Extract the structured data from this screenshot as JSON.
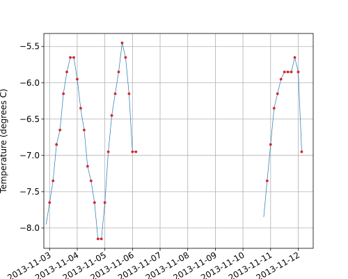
{
  "chart_data": {
    "type": "line",
    "title": "",
    "xlabel": "",
    "ylabel": "Temperature (degrees C)",
    "x_type": "date",
    "xlim": [
      "2013-11-02 19:00",
      "2013-11-12 13:00"
    ],
    "ylim": [
      -8.28,
      -5.32
    ],
    "grid": true,
    "x_ticks": [
      "2013-11-03",
      "2013-11-04",
      "2013-11-05",
      "2013-11-06",
      "2013-11-07",
      "2013-11-08",
      "2013-11-09",
      "2013-11-10",
      "2013-11-11",
      "2013-11-12"
    ],
    "y_ticks": [
      -8.0,
      -7.5,
      -7.0,
      -6.5,
      -6.0,
      -5.5
    ],
    "line_color": "#1f77b4",
    "marker_color": "#d62728",
    "line": {
      "x": [
        "2013-11-02 21:00",
        "2013-11-03 00:00",
        "2013-11-03 03:00",
        "2013-11-03 06:00",
        "2013-11-03 09:00",
        "2013-11-03 12:00",
        "2013-11-03 15:00",
        "2013-11-03 18:00",
        "2013-11-03 21:00",
        "2013-11-04 00:00",
        "2013-11-04 03:00",
        "2013-11-04 06:00",
        "2013-11-04 09:00",
        "2013-11-04 12:00",
        "2013-11-04 15:00",
        "2013-11-04 18:00",
        "2013-11-04 21:00",
        "2013-11-05 00:00",
        "2013-11-05 03:00",
        "2013-11-05 06:00",
        "2013-11-05 09:00",
        "2013-11-05 12:00",
        "2013-11-05 15:00",
        "2013-11-05 18:00",
        "2013-11-05 21:00",
        "2013-11-06 00:00",
        "2013-11-06 03:00",
        "2013-11-06 06:00",
        null,
        "2013-11-10 18:00",
        "2013-11-10 21:00",
        "2013-11-11 00:00",
        "2013-11-11 03:00",
        "2013-11-11 06:00",
        "2013-11-11 09:00",
        "2013-11-11 12:00",
        "2013-11-11 15:00",
        "2013-11-11 18:00",
        "2013-11-11 21:00",
        "2013-11-12 00:00",
        "2013-11-12 03:00"
      ],
      "y": [
        -7.95,
        -7.65,
        -7.35,
        -6.85,
        -6.65,
        -6.15,
        -5.85,
        -5.65,
        -5.65,
        -5.95,
        -6.35,
        -6.65,
        -7.15,
        -7.35,
        -7.65,
        -8.15,
        -8.15,
        -7.65,
        -6.95,
        -6.45,
        -6.15,
        -5.85,
        -5.45,
        -5.65,
        -6.15,
        -6.95,
        -6.95,
        null,
        null,
        -7.85,
        -7.35,
        -6.85,
        -6.35,
        -6.15,
        -5.95,
        -5.85,
        -5.85,
        -5.85,
        -5.65,
        -5.85,
        -6.95
      ]
    },
    "markers": {
      "x": [
        "2013-11-03 00:00",
        "2013-11-03 03:00",
        "2013-11-03 06:00",
        "2013-11-03 09:00",
        "2013-11-03 12:00",
        "2013-11-03 15:00",
        "2013-11-03 18:00",
        "2013-11-03 21:00",
        "2013-11-04 00:00",
        "2013-11-04 03:00",
        "2013-11-04 06:00",
        "2013-11-04 09:00",
        "2013-11-04 12:00",
        "2013-11-04 15:00",
        "2013-11-04 18:00",
        "2013-11-04 21:00",
        "2013-11-05 00:00",
        "2013-11-05 03:00",
        "2013-11-05 06:00",
        "2013-11-05 09:00",
        "2013-11-05 12:00",
        "2013-11-05 15:00",
        "2013-11-05 18:00",
        "2013-11-05 21:00",
        "2013-11-06 00:00",
        "2013-11-06 03:00",
        "2013-11-06 06:00",
        "2013-11-10 21:00",
        "2013-11-11 00:00",
        "2013-11-11 03:00",
        "2013-11-11 06:00",
        "2013-11-11 09:00",
        "2013-11-11 12:00",
        "2013-11-11 15:00",
        "2013-11-11 18:00",
        "2013-11-11 21:00",
        "2013-11-12 00:00",
        "2013-11-12 03:00"
      ],
      "y": [
        -7.65,
        -7.35,
        -6.85,
        -6.65,
        -6.15,
        -5.85,
        -5.65,
        -5.65,
        -5.95,
        -6.35,
        -6.65,
        -7.15,
        -7.35,
        -7.65,
        -8.15,
        -8.15,
        -7.65,
        -6.95,
        -6.45,
        -6.15,
        -5.85,
        -5.45,
        -5.65,
        -6.15,
        -6.95,
        -6.95,
        null,
        -7.35,
        -6.85,
        -6.35,
        -6.15,
        -5.95,
        -5.85,
        -5.85,
        -5.85,
        -5.65,
        -5.85,
        -6.95
      ]
    }
  }
}
